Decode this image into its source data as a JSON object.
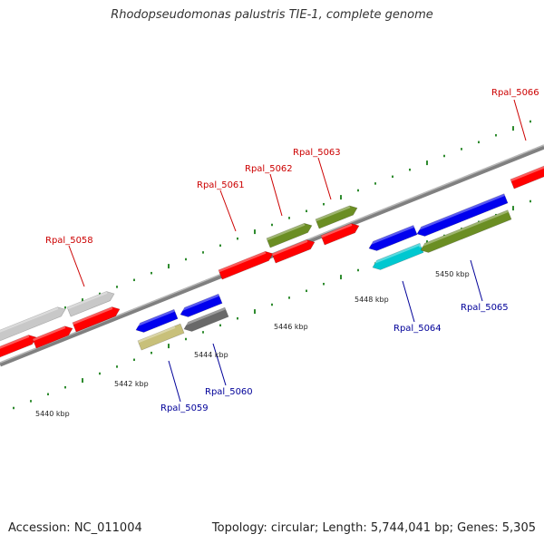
{
  "title": "Rhodopseudomonas palustris TIE-1, complete genome",
  "footer": {
    "accession": "Accession: NC_011004",
    "stats": "Topology: circular; Length: 5,744,041 bp; Genes: 5,305"
  },
  "colors": {
    "red": "#ff0000",
    "blue": "#0000ee",
    "olive": "#6b8e23",
    "light_gray": "#c8c8c8",
    "dark_gray": "#696969",
    "cyan": "#00c8d0",
    "khaki": "#c8c07a",
    "tick_green": "#2e8b2e",
    "backbone": "#808080",
    "label_red": "#cc0000",
    "label_blue": "#000099"
  },
  "scale_labels": [
    "5440 kbp",
    "5442 kbp",
    "5444 kbp",
    "5446 kbp",
    "5448 kbp",
    "5450 kbp"
  ],
  "gene_labels_forward": [
    "Rpal_5058",
    "Rpal_5061",
    "Rpal_5062",
    "Rpal_5063",
    "Rpal_5066"
  ],
  "gene_labels_reverse": [
    "Rpal_5059",
    "Rpal_5060",
    "Rpal_5064",
    "Rpal_5065"
  ]
}
